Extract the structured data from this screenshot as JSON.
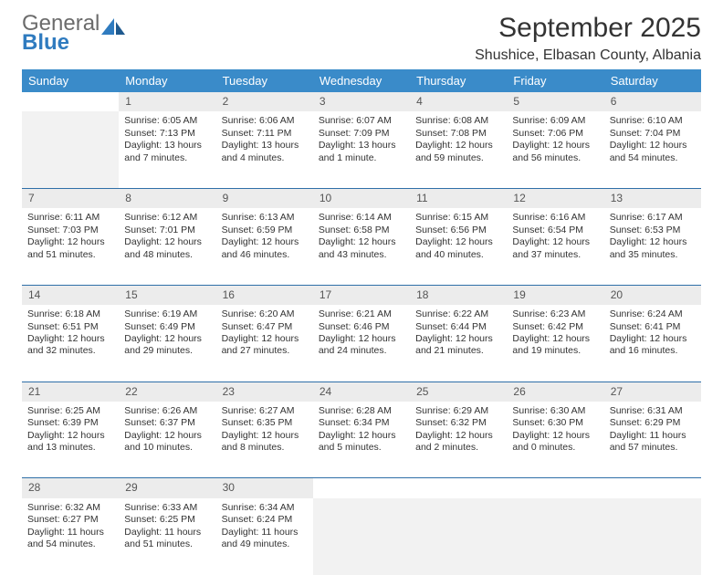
{
  "brand": {
    "word1": "General",
    "word2": "Blue"
  },
  "header": {
    "title": "September 2025",
    "location": "Shushice, Elbasan County, Albania"
  },
  "colors": {
    "header_bg": "#3a8bc9",
    "row_divider": "#2f6fa8",
    "daynum_bg": "#ececec",
    "empty_bg": "#f2f2f2",
    "text": "#333333",
    "logo_gray": "#6b6b6b",
    "logo_blue": "#2f7bbf"
  },
  "weekdays": [
    "Sunday",
    "Monday",
    "Tuesday",
    "Wednesday",
    "Thursday",
    "Friday",
    "Saturday"
  ],
  "weeks": [
    {
      "days": [
        null,
        {
          "n": "1",
          "sunrise": "6:05 AM",
          "sunset": "7:13 PM",
          "daylight": "13 hours and 7 minutes."
        },
        {
          "n": "2",
          "sunrise": "6:06 AM",
          "sunset": "7:11 PM",
          "daylight": "13 hours and 4 minutes."
        },
        {
          "n": "3",
          "sunrise": "6:07 AM",
          "sunset": "7:09 PM",
          "daylight": "13 hours and 1 minute."
        },
        {
          "n": "4",
          "sunrise": "6:08 AM",
          "sunset": "7:08 PM",
          "daylight": "12 hours and 59 minutes."
        },
        {
          "n": "5",
          "sunrise": "6:09 AM",
          "sunset": "7:06 PM",
          "daylight": "12 hours and 56 minutes."
        },
        {
          "n": "6",
          "sunrise": "6:10 AM",
          "sunset": "7:04 PM",
          "daylight": "12 hours and 54 minutes."
        }
      ]
    },
    {
      "days": [
        {
          "n": "7",
          "sunrise": "6:11 AM",
          "sunset": "7:03 PM",
          "daylight": "12 hours and 51 minutes."
        },
        {
          "n": "8",
          "sunrise": "6:12 AM",
          "sunset": "7:01 PM",
          "daylight": "12 hours and 48 minutes."
        },
        {
          "n": "9",
          "sunrise": "6:13 AM",
          "sunset": "6:59 PM",
          "daylight": "12 hours and 46 minutes."
        },
        {
          "n": "10",
          "sunrise": "6:14 AM",
          "sunset": "6:58 PM",
          "daylight": "12 hours and 43 minutes."
        },
        {
          "n": "11",
          "sunrise": "6:15 AM",
          "sunset": "6:56 PM",
          "daylight": "12 hours and 40 minutes."
        },
        {
          "n": "12",
          "sunrise": "6:16 AM",
          "sunset": "6:54 PM",
          "daylight": "12 hours and 37 minutes."
        },
        {
          "n": "13",
          "sunrise": "6:17 AM",
          "sunset": "6:53 PM",
          "daylight": "12 hours and 35 minutes."
        }
      ]
    },
    {
      "days": [
        {
          "n": "14",
          "sunrise": "6:18 AM",
          "sunset": "6:51 PM",
          "daylight": "12 hours and 32 minutes."
        },
        {
          "n": "15",
          "sunrise": "6:19 AM",
          "sunset": "6:49 PM",
          "daylight": "12 hours and 29 minutes."
        },
        {
          "n": "16",
          "sunrise": "6:20 AM",
          "sunset": "6:47 PM",
          "daylight": "12 hours and 27 minutes."
        },
        {
          "n": "17",
          "sunrise": "6:21 AM",
          "sunset": "6:46 PM",
          "daylight": "12 hours and 24 minutes."
        },
        {
          "n": "18",
          "sunrise": "6:22 AM",
          "sunset": "6:44 PM",
          "daylight": "12 hours and 21 minutes."
        },
        {
          "n": "19",
          "sunrise": "6:23 AM",
          "sunset": "6:42 PM",
          "daylight": "12 hours and 19 minutes."
        },
        {
          "n": "20",
          "sunrise": "6:24 AM",
          "sunset": "6:41 PM",
          "daylight": "12 hours and 16 minutes."
        }
      ]
    },
    {
      "days": [
        {
          "n": "21",
          "sunrise": "6:25 AM",
          "sunset": "6:39 PM",
          "daylight": "12 hours and 13 minutes."
        },
        {
          "n": "22",
          "sunrise": "6:26 AM",
          "sunset": "6:37 PM",
          "daylight": "12 hours and 10 minutes."
        },
        {
          "n": "23",
          "sunrise": "6:27 AM",
          "sunset": "6:35 PM",
          "daylight": "12 hours and 8 minutes."
        },
        {
          "n": "24",
          "sunrise": "6:28 AM",
          "sunset": "6:34 PM",
          "daylight": "12 hours and 5 minutes."
        },
        {
          "n": "25",
          "sunrise": "6:29 AM",
          "sunset": "6:32 PM",
          "daylight": "12 hours and 2 minutes."
        },
        {
          "n": "26",
          "sunrise": "6:30 AM",
          "sunset": "6:30 PM",
          "daylight": "12 hours and 0 minutes."
        },
        {
          "n": "27",
          "sunrise": "6:31 AM",
          "sunset": "6:29 PM",
          "daylight": "11 hours and 57 minutes."
        }
      ]
    },
    {
      "days": [
        {
          "n": "28",
          "sunrise": "6:32 AM",
          "sunset": "6:27 PM",
          "daylight": "11 hours and 54 minutes."
        },
        {
          "n": "29",
          "sunrise": "6:33 AM",
          "sunset": "6:25 PM",
          "daylight": "11 hours and 51 minutes."
        },
        {
          "n": "30",
          "sunrise": "6:34 AM",
          "sunset": "6:24 PM",
          "daylight": "11 hours and 49 minutes."
        },
        null,
        null,
        null,
        null
      ]
    }
  ],
  "labels": {
    "sunrise": "Sunrise:",
    "sunset": "Sunset:",
    "daylight": "Daylight:"
  }
}
